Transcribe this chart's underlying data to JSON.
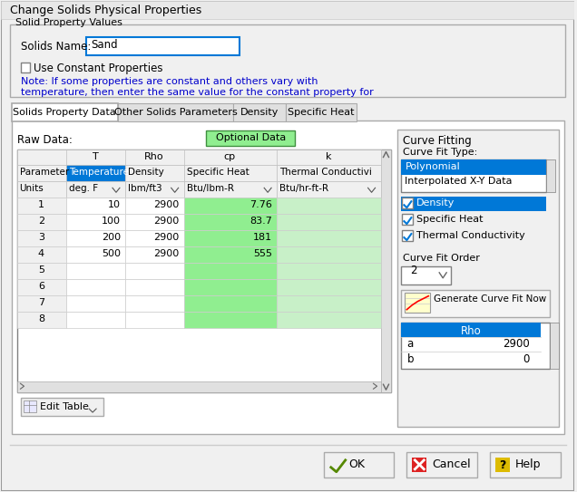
{
  "title": "Change Solids Physical Properties",
  "bg_color": "#f0f0f0",
  "white": "#ffffff",
  "blue_highlight": "#0078d7",
  "green_cell": "#90ee90",
  "light_green": "#c8f0c8",
  "border_color": "#808080",
  "text_color": "#000000",
  "blue_text": "#0000cc",
  "solid_name": "Sand",
  "note_line1": "Note: If some properties are constant and others vary with",
  "note_line2": "temperature, then enter the same value for the constant property for",
  "tabs": [
    "Solids Property Data",
    "Other Solids Parameters",
    "Density",
    "Specific Heat"
  ],
  "active_tab": 0,
  "col_headers": [
    "",
    "T",
    "Rho",
    "cp",
    "k"
  ],
  "param_row": [
    "Parameter",
    "Temperature",
    "Density",
    "Specific Heat",
    "Thermal Conductivi"
  ],
  "units_row": [
    "Units",
    "deg. F",
    "lbm/ft3",
    "Btu/lbm-R",
    "Btu/hr-ft-R"
  ],
  "rows": [
    [
      1,
      10,
      2900,
      7.76,
      ""
    ],
    [
      2,
      100,
      2900,
      83.7,
      ""
    ],
    [
      3,
      200,
      2900,
      181,
      ""
    ],
    [
      4,
      500,
      2900,
      555,
      ""
    ],
    [
      5,
      "",
      "",
      "",
      ""
    ],
    [
      6,
      "",
      "",
      "",
      ""
    ],
    [
      7,
      "",
      "",
      "",
      ""
    ],
    [
      8,
      "",
      "",
      "",
      ""
    ]
  ],
  "curve_fit_types": [
    "Polynomial",
    "Interpolated X-Y Data"
  ],
  "checkboxes": [
    "Density",
    "Specific Heat",
    "Thermal Conductivity"
  ],
  "checked": [
    true,
    true,
    true
  ],
  "curve_fit_order": "2",
  "rho_label": "Rho",
  "rho_a": "2900",
  "rho_b": "0",
  "bottom_buttons": [
    "OK",
    "Cancel",
    "Help"
  ]
}
